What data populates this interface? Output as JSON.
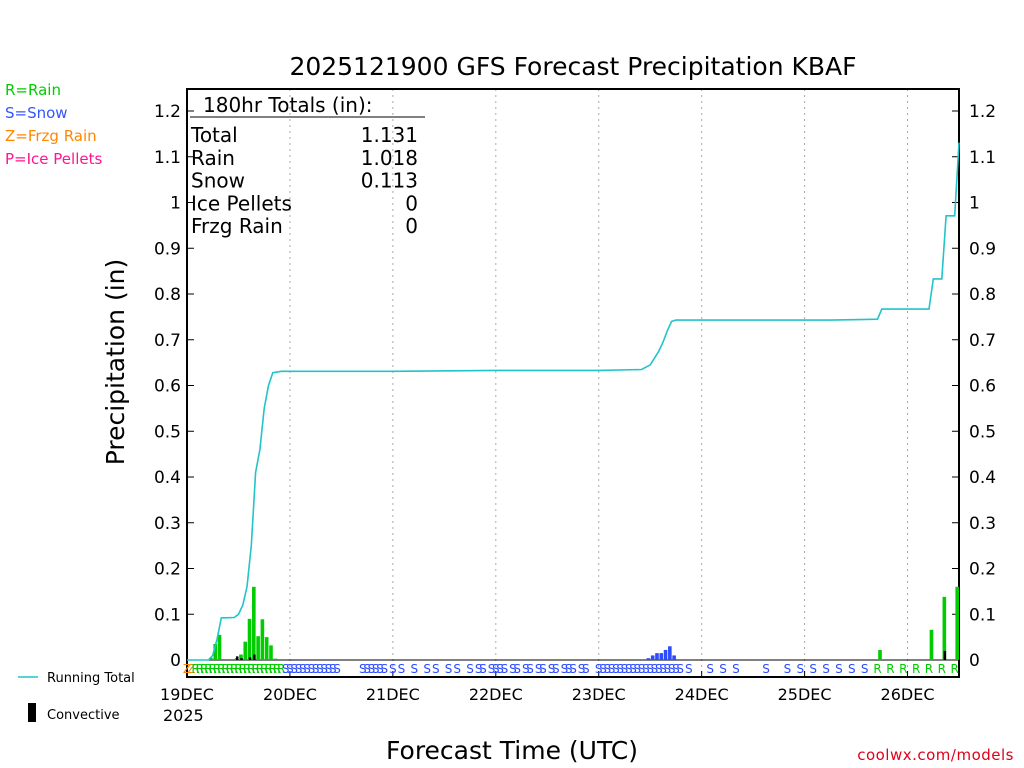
{
  "legend": {
    "rain": "R=Rain",
    "snow": "S=Snow",
    "frzg": "Z=Frzg Rain",
    "ice": "P=Ice Pellets"
  },
  "credit": "coolwx.com/models",
  "colors": {
    "rain": "#00cc00",
    "snow": "#2b4cff",
    "frzg": "#ff8800",
    "ice": "#ff1493",
    "running": "#22c4c8",
    "convective": "#000000",
    "grid": "#aaaaaa"
  },
  "chart_data": {
    "type": "bar",
    "title": "2025121900 GFS Forecast Precipitation KBAF",
    "xlabel": "Forecast Time (UTC)",
    "ylabel": "Precipitation (in)",
    "ylim": [
      0,
      1.25
    ],
    "xlim_hours": [
      0,
      180
    ],
    "y_ticks": [
      "0",
      "0.1",
      "0.2",
      "0.3",
      "0.4",
      "0.5",
      "0.6",
      "0.7",
      "0.8",
      "0.9",
      "1",
      "1.1",
      "1.2"
    ],
    "x_ticks": [
      {
        "hour": 0,
        "label": "19DEC"
      },
      {
        "hour": 24,
        "label": "20DEC"
      },
      {
        "hour": 48,
        "label": "21DEC"
      },
      {
        "hour": 72,
        "label": "22DEC"
      },
      {
        "hour": 96,
        "label": "23DEC"
      },
      {
        "hour": 120,
        "label": "24DEC"
      },
      {
        "hour": 144,
        "label": "25DEC"
      },
      {
        "hour": 168,
        "label": "26DEC"
      }
    ],
    "year_label": "2025",
    "totals_box": {
      "header": "180hr Totals (in):",
      "rows": [
        {
          "label": "Total",
          "value": "1.131"
        },
        {
          "label": "Rain",
          "value": "1.018"
        },
        {
          "label": "Snow",
          "value": "0.113"
        },
        {
          "label": "Ice Pellets",
          "value": "0"
        },
        {
          "label": "Frzg Rain",
          "value": "0"
        }
      ]
    },
    "series_legend": {
      "running": "Running Total",
      "convective": "Convective"
    },
    "bars": [
      {
        "hour": 6,
        "value": 0.005,
        "type": "rain"
      },
      {
        "hour": 7,
        "value": 0.035,
        "type": "rain"
      },
      {
        "hour": 8,
        "value": 0.055,
        "type": "rain"
      },
      {
        "hour": 12,
        "value": 0.004,
        "type": "rain"
      },
      {
        "hour": 13,
        "value": 0.012,
        "type": "rain"
      },
      {
        "hour": 14,
        "value": 0.04,
        "type": "rain"
      },
      {
        "hour": 15,
        "value": 0.09,
        "type": "rain"
      },
      {
        "hour": 16,
        "value": 0.16,
        "type": "rain"
      },
      {
        "hour": 17,
        "value": 0.052,
        "type": "rain"
      },
      {
        "hour": 18,
        "value": 0.089,
        "type": "rain"
      },
      {
        "hour": 19,
        "value": 0.05,
        "type": "rain"
      },
      {
        "hour": 20,
        "value": 0.032,
        "type": "rain"
      },
      {
        "hour": 21,
        "value": 0.003,
        "type": "rain"
      },
      {
        "hour": 108,
        "value": 0.004,
        "type": "snow"
      },
      {
        "hour": 109,
        "value": 0.01,
        "type": "snow"
      },
      {
        "hour": 110,
        "value": 0.015,
        "type": "snow"
      },
      {
        "hour": 111,
        "value": 0.015,
        "type": "snow"
      },
      {
        "hour": 112,
        "value": 0.022,
        "type": "snow"
      },
      {
        "hour": 113,
        "value": 0.03,
        "type": "snow"
      },
      {
        "hour": 114,
        "value": 0.01,
        "type": "snow"
      },
      {
        "hour": 162,
        "value": 0.022,
        "type": "rain"
      },
      {
        "hour": 174,
        "value": 0.066,
        "type": "rain"
      },
      {
        "hour": 177,
        "value": 0.138,
        "type": "rain"
      },
      {
        "hour": 180,
        "value": 0.16,
        "type": "rain"
      }
    ],
    "convective": [
      {
        "hour": 12,
        "value": 0.008
      },
      {
        "hour": 13,
        "value": 0.004
      },
      {
        "hour": 15,
        "value": 0.006
      },
      {
        "hour": 16,
        "value": 0.012
      },
      {
        "hour": 177,
        "value": 0.02
      }
    ],
    "running_total": [
      [
        0,
        0
      ],
      [
        5,
        0
      ],
      [
        6,
        0.01
      ],
      [
        7,
        0.045
      ],
      [
        8,
        0.092
      ],
      [
        11,
        0.093
      ],
      [
        12,
        0.1
      ],
      [
        13,
        0.12
      ],
      [
        14,
        0.16
      ],
      [
        15,
        0.25
      ],
      [
        16,
        0.41
      ],
      [
        17,
        0.46
      ],
      [
        18,
        0.55
      ],
      [
        19,
        0.6
      ],
      [
        20,
        0.628
      ],
      [
        22,
        0.631
      ],
      [
        48,
        0.631
      ],
      [
        72,
        0.633
      ],
      [
        96,
        0.633
      ],
      [
        106,
        0.635
      ],
      [
        108,
        0.645
      ],
      [
        109,
        0.66
      ],
      [
        110,
        0.675
      ],
      [
        111,
        0.695
      ],
      [
        112,
        0.72
      ],
      [
        113,
        0.74
      ],
      [
        114,
        0.743
      ],
      [
        150,
        0.743
      ],
      [
        157,
        0.744
      ],
      [
        161,
        0.745
      ],
      [
        162,
        0.767
      ],
      [
        173,
        0.767
      ],
      [
        174,
        0.833
      ],
      [
        176,
        0.833
      ],
      [
        177,
        0.971
      ],
      [
        179,
        0.971
      ],
      [
        180,
        1.131
      ]
    ],
    "ptype_strip": [
      {
        "hours": [
          0,
          1
        ],
        "letter": "Z",
        "type": "frzg"
      },
      {
        "hours": [
          2,
          22
        ],
        "letter": "R",
        "type": "rain"
      },
      {
        "hours": [
          23,
          35
        ],
        "letter": "S",
        "type": "snow"
      },
      {
        "hours": [
          41,
          46
        ],
        "letter": "S",
        "type": "snow"
      },
      {
        "hours": [
          48,
          48
        ],
        "letter": "S",
        "type": "snow"
      },
      {
        "hours": [
          50,
          50
        ],
        "letter": "S",
        "type": "snow"
      },
      {
        "hours": [
          53,
          53
        ],
        "letter": "S",
        "type": "snow"
      },
      {
        "hours": [
          56,
          56
        ],
        "letter": "S",
        "type": "snow"
      },
      {
        "hours": [
          58,
          58
        ],
        "letter": "S",
        "type": "snow"
      },
      {
        "hours": [
          61,
          61
        ],
        "letter": "S",
        "type": "snow"
      },
      {
        "hours": [
          63,
          63
        ],
        "letter": "S",
        "type": "snow"
      },
      {
        "hours": [
          66,
          66
        ],
        "letter": "S",
        "type": "snow"
      },
      {
        "hours": [
          68,
          69
        ],
        "letter": "S",
        "type": "snow"
      },
      {
        "hours": [
          71,
          74
        ],
        "letter": "S",
        "type": "snow"
      },
      {
        "hours": [
          76,
          77
        ],
        "letter": "S",
        "type": "snow"
      },
      {
        "hours": [
          79,
          80
        ],
        "letter": "S",
        "type": "snow"
      },
      {
        "hours": [
          82,
          83
        ],
        "letter": "S",
        "type": "snow"
      },
      {
        "hours": [
          85,
          86
        ],
        "letter": "S",
        "type": "snow"
      },
      {
        "hours": [
          88,
          90
        ],
        "letter": "S",
        "type": "snow"
      },
      {
        "hours": [
          92,
          93
        ],
        "letter": "S",
        "type": "snow"
      },
      {
        "hours": [
          96,
          115
        ],
        "letter": "S",
        "type": "snow"
      },
      {
        "hours": [
          117,
          117
        ],
        "letter": "S",
        "type": "snow"
      },
      {
        "hours": [
          122,
          122
        ],
        "letter": "S",
        "type": "snow"
      },
      {
        "hours": [
          125,
          125
        ],
        "letter": "S",
        "type": "snow"
      },
      {
        "hours": [
          128,
          128
        ],
        "letter": "S",
        "type": "snow"
      },
      {
        "hours": [
          135,
          135
        ],
        "letter": "S",
        "type": "snow"
      },
      {
        "hours": [
          140,
          140
        ],
        "letter": "S",
        "type": "snow"
      },
      {
        "hours": [
          143,
          143
        ],
        "letter": "S",
        "type": "snow"
      },
      {
        "hours": [
          146,
          146
        ],
        "letter": "S",
        "type": "snow"
      },
      {
        "hours": [
          149,
          149
        ],
        "letter": "S",
        "type": "snow"
      },
      {
        "hours": [
          152,
          152
        ],
        "letter": "S",
        "type": "snow"
      },
      {
        "hours": [
          155,
          155
        ],
        "letter": "S",
        "type": "snow"
      },
      {
        "hours": [
          158,
          158
        ],
        "letter": "S",
        "type": "snow"
      },
      {
        "hours": [
          161,
          161
        ],
        "letter": "R",
        "type": "rain"
      },
      {
        "hours": [
          164,
          164
        ],
        "letter": "R",
        "type": "rain"
      },
      {
        "hours": [
          167,
          167
        ],
        "letter": "R",
        "type": "rain"
      },
      {
        "hours": [
          170,
          170
        ],
        "letter": "R",
        "type": "rain"
      },
      {
        "hours": [
          173,
          173
        ],
        "letter": "R",
        "type": "rain"
      },
      {
        "hours": [
          176,
          176
        ],
        "letter": "R",
        "type": "rain"
      },
      {
        "hours": [
          179,
          179
        ],
        "letter": "R",
        "type": "rain"
      }
    ]
  }
}
